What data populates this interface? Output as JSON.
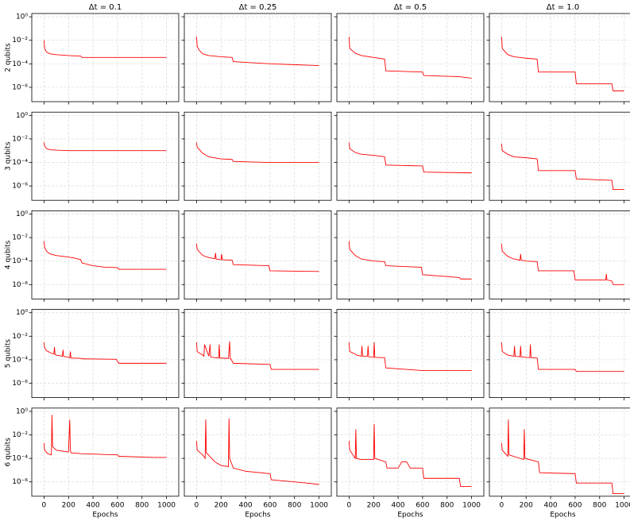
{
  "chart_data": [
    {
      "type": "line",
      "title": "Δt = 0.1",
      "ylabel": "2 qubits",
      "log_y": true,
      "grid": true,
      "color": "#ff0000",
      "xlim": [
        -100,
        1100
      ],
      "ylim": [
        6e-08,
        1.9
      ],
      "xticks": [
        0,
        200,
        400,
        600,
        800,
        1000
      ],
      "yticks": [
        {
          "value": 1,
          "label": "10⁰"
        },
        {
          "value": 0.01,
          "label": "10⁻²"
        },
        {
          "value": 0.0001,
          "label": "10⁻⁴"
        },
        {
          "value": 1e-06,
          "label": "10⁻⁶"
        }
      ],
      "x": [
        0,
        5,
        20,
        50,
        100,
        200,
        300,
        310,
        600,
        1000
      ],
      "values": [
        0.01,
        0.002,
        0.001,
        0.0007,
        0.0006,
        0.0005,
        0.00045,
        0.00035,
        0.00035,
        0.00035
      ]
    },
    {
      "type": "line",
      "title": "Δt = 0.25",
      "log_y": true,
      "grid": true,
      "color": "#ff0000",
      "xlim": [
        -100,
        1100
      ],
      "ylim": [
        6e-08,
        1.9
      ],
      "xticks": [
        0,
        200,
        400,
        600,
        800,
        1000
      ],
      "yticks": [
        1,
        0.01,
        0.0001,
        1e-06
      ],
      "x": [
        0,
        5,
        20,
        50,
        100,
        200,
        290,
        300,
        310,
        600,
        1000
      ],
      "values": [
        0.02,
        0.003,
        0.0015,
        0.0007,
        0.0005,
        0.0004,
        0.00035,
        0.00015,
        0.00015,
        0.0001,
        7e-05
      ]
    },
    {
      "type": "line",
      "title": "Δt = 0.5",
      "log_y": true,
      "grid": true,
      "color": "#ff0000",
      "xlim": [
        -100,
        1100
      ],
      "ylim": [
        6e-08,
        1.9
      ],
      "xticks": [
        0,
        200,
        400,
        600,
        800,
        1000
      ],
      "yticks": [
        1,
        0.01,
        0.0001,
        1e-06
      ],
      "x": [
        0,
        5,
        50,
        100,
        200,
        290,
        300,
        600,
        610,
        900,
        1000
      ],
      "values": [
        0.02,
        0.002,
        0.0008,
        0.0005,
        0.00035,
        0.00025,
        2.5e-05,
        2e-05,
        1e-05,
        8e-06,
        6e-06
      ]
    },
    {
      "type": "line",
      "title": "Δt = 1.0",
      "log_y": true,
      "grid": true,
      "color": "#ff0000",
      "xlim": [
        -100,
        1100
      ],
      "ylim": [
        6e-08,
        1.9
      ],
      "xticks": [
        0,
        200,
        400,
        600,
        800,
        1000
      ],
      "yticks": [
        1,
        0.01,
        0.0001,
        1e-06
      ],
      "x": [
        0,
        5,
        50,
        100,
        200,
        290,
        300,
        600,
        610,
        900,
        910,
        1000
      ],
      "values": [
        0.02,
        0.002,
        0.0006,
        0.0004,
        0.0003,
        0.00025,
        2e-05,
        2e-05,
        2e-06,
        2e-06,
        5e-07,
        5e-07
      ]
    },
    {
      "type": "line",
      "ylabel": "3 qubits",
      "log_y": true,
      "grid": true,
      "color": "#ff0000",
      "xlim": [
        -100,
        1100
      ],
      "ylim": [
        6e-08,
        1.9
      ],
      "xticks": [
        0,
        200,
        400,
        600,
        800,
        1000
      ],
      "yticks": [
        {
          "value": 1,
          "label": "10⁰"
        },
        {
          "value": 0.01,
          "label": "10⁻²"
        },
        {
          "value": 0.0001,
          "label": "10⁻⁴"
        },
        {
          "value": 1e-06,
          "label": "10⁻⁶"
        }
      ],
      "x": [
        0,
        5,
        20,
        50,
        100,
        200,
        300,
        600,
        1000
      ],
      "values": [
        0.005,
        0.0025,
        0.0015,
        0.0012,
        0.0011,
        0.001,
        0.001,
        0.001,
        0.001
      ]
    },
    {
      "type": "line",
      "log_y": true,
      "grid": true,
      "color": "#ff0000",
      "xlim": [
        -100,
        1100
      ],
      "ylim": [
        6e-08,
        1.9
      ],
      "xticks": [
        0,
        200,
        400,
        600,
        800,
        1000
      ],
      "yticks": [
        1,
        0.01,
        0.0001,
        1e-06
      ],
      "x": [
        0,
        5,
        50,
        100,
        200,
        290,
        300,
        600,
        1000
      ],
      "values": [
        0.005,
        0.002,
        0.0006,
        0.0003,
        0.0002,
        0.00018,
        0.00012,
        0.0001,
        0.0001
      ]
    },
    {
      "type": "line",
      "log_y": true,
      "grid": true,
      "color": "#ff0000",
      "xlim": [
        -100,
        1100
      ],
      "ylim": [
        6e-08,
        1.9
      ],
      "xticks": [
        0,
        200,
        400,
        600,
        800,
        1000
      ],
      "yticks": [
        1,
        0.01,
        0.0001,
        1e-06
      ],
      "x": [
        0,
        5,
        50,
        100,
        200,
        290,
        300,
        600,
        610,
        1000
      ],
      "values": [
        0.005,
        0.0015,
        0.0007,
        0.0005,
        0.0004,
        0.0003,
        6e-05,
        5e-05,
        1.5e-05,
        1.3e-05
      ]
    },
    {
      "type": "line",
      "log_y": true,
      "grid": true,
      "color": "#ff0000",
      "xlim": [
        -100,
        1100
      ],
      "ylim": [
        6e-08,
        1.9
      ],
      "xticks": [
        0,
        200,
        400,
        600,
        800,
        1000
      ],
      "yticks": [
        1,
        0.01,
        0.0001,
        1e-06
      ],
      "x": [
        0,
        5,
        50,
        100,
        200,
        290,
        300,
        600,
        610,
        900,
        910,
        1000
      ],
      "values": [
        0.004,
        0.001,
        0.0005,
        0.0003,
        0.00025,
        0.0002,
        2e-05,
        2e-05,
        4e-06,
        3e-06,
        5e-07,
        5e-07
      ]
    },
    {
      "type": "line",
      "ylabel": "4 qubits",
      "log_y": true,
      "grid": true,
      "color": "#ff0000",
      "xlim": [
        -100,
        1100
      ],
      "ylim": [
        6e-08,
        1.9
      ],
      "xticks": [
        0,
        200,
        400,
        600,
        800,
        1000
      ],
      "yticks": [
        {
          "value": 1,
          "label": "10⁰"
        },
        {
          "value": 0.01,
          "label": "10⁻²"
        },
        {
          "value": 0.0001,
          "label": "10⁻⁴"
        },
        {
          "value": 1e-06,
          "label": "10⁻⁶"
        }
      ],
      "x": [
        0,
        5,
        20,
        50,
        100,
        200,
        250,
        300,
        310,
        400,
        500,
        600,
        610,
        1000
      ],
      "values": [
        0.005,
        0.0015,
        0.0007,
        0.0004,
        0.0003,
        0.00022,
        0.00018,
        0.00013,
        7e-05,
        4e-05,
        3e-05,
        2.8e-05,
        2e-05,
        2e-05
      ]
    },
    {
      "type": "line",
      "log_y": true,
      "grid": true,
      "color": "#ff0000",
      "xlim": [
        -100,
        1100
      ],
      "ylim": [
        6e-08,
        1.9
      ],
      "xticks": [
        0,
        200,
        400,
        600,
        800,
        1000
      ],
      "yticks": [
        1,
        0.01,
        0.0001,
        1e-06
      ],
      "x": [
        0,
        5,
        50,
        100,
        150,
        155,
        160,
        200,
        205,
        210,
        290,
        300,
        590,
        600,
        1000
      ],
      "values": [
        0.003,
        0.001,
        0.0003,
        0.0002,
        0.00016,
        0.0005,
        0.00015,
        0.00013,
        0.0004,
        0.00013,
        0.00012,
        5e-05,
        4e-05,
        1.5e-05,
        1.3e-05
      ]
    },
    {
      "type": "line",
      "log_y": true,
      "grid": true,
      "color": "#ff0000",
      "xlim": [
        -100,
        1100
      ],
      "ylim": [
        6e-08,
        1.9
      ],
      "xticks": [
        0,
        200,
        400,
        600,
        800,
        1000
      ],
      "yticks": [
        1,
        0.01,
        0.0001,
        1e-06
      ],
      "x": [
        0,
        5,
        50,
        100,
        200,
        290,
        300,
        590,
        600,
        900,
        910,
        1000
      ],
      "values": [
        0.005,
        0.001,
        0.0003,
        0.00015,
        0.0001,
        9e-05,
        4e-05,
        3e-05,
        7e-06,
        4e-06,
        3e-06,
        3e-06
      ]
    },
    {
      "type": "line",
      "log_y": true,
      "grid": true,
      "color": "#ff0000",
      "xlim": [
        -100,
        1100
      ],
      "ylim": [
        6e-08,
        1.9
      ],
      "xticks": [
        0,
        200,
        400,
        600,
        800,
        1000
      ],
      "yticks": [
        1,
        0.01,
        0.0001,
        1e-06
      ],
      "x": [
        0,
        5,
        50,
        100,
        150,
        155,
        160,
        200,
        290,
        300,
        590,
        600,
        850,
        855,
        860,
        900,
        910,
        1000
      ],
      "values": [
        0.003,
        0.0007,
        0.00025,
        0.00015,
        0.00012,
        0.0004,
        0.00012,
        0.0001,
        9e-05,
        1.5e-05,
        1.5e-05,
        2.5e-06,
        2.5e-06,
        8e-06,
        2.5e-06,
        2e-06,
        1e-06,
        1e-06
      ]
    },
    {
      "type": "line",
      "ylabel": "5 qubits",
      "log_y": true,
      "grid": true,
      "color": "#ff0000",
      "xlim": [
        -100,
        1100
      ],
      "ylim": [
        6e-08,
        1.9
      ],
      "xticks": [
        0,
        200,
        400,
        600,
        800,
        1000
      ],
      "yticks": [
        {
          "value": 1,
          "label": "10⁰"
        },
        {
          "value": 0.01,
          "label": "10⁻²"
        },
        {
          "value": 0.0001,
          "label": "10⁻⁴"
        },
        {
          "value": 1e-06,
          "label": "10⁻⁶"
        }
      ],
      "x": [
        0,
        5,
        20,
        50,
        80,
        85,
        90,
        100,
        150,
        155,
        160,
        200,
        210,
        215,
        220,
        300,
        310,
        590,
        610,
        1000
      ],
      "values": [
        0.003,
        0.001,
        0.0006,
        0.0004,
        0.0003,
        0.0012,
        0.00028,
        0.00025,
        0.0002,
        0.0007,
        0.00019,
        0.00016,
        0.00015,
        0.0005,
        0.00014,
        0.00013,
        0.00012,
        0.00011,
        5e-05,
        5e-05
      ]
    },
    {
      "type": "line",
      "log_y": true,
      "grid": true,
      "color": "#ff0000",
      "xlim": [
        -100,
        1100
      ],
      "ylim": [
        6e-08,
        1.9
      ],
      "xticks": [
        0,
        200,
        400,
        600,
        800,
        1000
      ],
      "yticks": [
        1,
        0.01,
        0.0001,
        1e-06
      ],
      "x": [
        0,
        5,
        50,
        60,
        65,
        100,
        110,
        115,
        150,
        180,
        185,
        190,
        260,
        270,
        275,
        280,
        300,
        600,
        610,
        1000
      ],
      "values": [
        0.003,
        0.0005,
        0.00025,
        0.0002,
        0.002,
        0.0002,
        0.002,
        0.00017,
        0.00015,
        0.00014,
        0.002,
        0.00014,
        0.00013,
        0.0035,
        0.00012,
        0.00012,
        5e-05,
        4e-05,
        1.5e-05,
        1.5e-05
      ]
    },
    {
      "type": "line",
      "log_y": true,
      "grid": true,
      "color": "#ff0000",
      "xlim": [
        -100,
        1100
      ],
      "ylim": [
        6e-08,
        1.9
      ],
      "xticks": [
        0,
        200,
        400,
        600,
        800,
        1000
      ],
      "yticks": [
        1,
        0.01,
        0.0001,
        1e-06
      ],
      "x": [
        0,
        5,
        50,
        60,
        100,
        105,
        110,
        150,
        155,
        160,
        200,
        205,
        210,
        290,
        300,
        600,
        1000
      ],
      "values": [
        0.003,
        0.0005,
        0.0003,
        0.00025,
        0.0002,
        0.0015,
        0.0002,
        0.0002,
        0.0015,
        0.00018,
        0.00016,
        0.003,
        0.00016,
        0.00015,
        2e-05,
        1.2e-05,
        1.2e-05
      ]
    },
    {
      "type": "line",
      "log_y": true,
      "grid": true,
      "color": "#ff0000",
      "xlim": [
        -100,
        1100
      ],
      "ylim": [
        6e-08,
        1.9
      ],
      "xticks": [
        0,
        200,
        400,
        600,
        800,
        1000
      ],
      "yticks": [
        1,
        0.01,
        0.0001,
        1e-06
      ],
      "x": [
        0,
        5,
        50,
        100,
        105,
        110,
        150,
        155,
        160,
        230,
        235,
        240,
        290,
        300,
        600,
        610,
        1000
      ],
      "values": [
        0.003,
        0.0005,
        0.00025,
        0.0002,
        0.0015,
        0.0002,
        0.00018,
        0.0015,
        0.00017,
        0.00015,
        0.002,
        0.00015,
        0.00014,
        1.5e-05,
        1.5e-05,
        1e-05,
        1e-05
      ]
    },
    {
      "type": "line",
      "ylabel": "6 qubits",
      "xlabel": "Epochs",
      "log_y": true,
      "grid": true,
      "color": "#ff0000",
      "xlim": [
        -100,
        1100
      ],
      "ylim": [
        6e-08,
        1.9
      ],
      "xticks": [
        0,
        200,
        400,
        600,
        800,
        1000
      ],
      "yticks": [
        {
          "value": 1,
          "label": "10⁰"
        },
        {
          "value": 0.01,
          "label": "10⁻²"
        },
        {
          "value": 0.0001,
          "label": "10⁻⁴"
        },
        {
          "value": 1e-06,
          "label": "10⁻⁶"
        }
      ],
      "x": [
        0,
        5,
        30,
        60,
        65,
        70,
        100,
        200,
        210,
        215,
        220,
        300,
        600,
        610,
        900,
        1000
      ],
      "values": [
        0.002,
        0.0005,
        0.00025,
        0.0002,
        0.5,
        0.001,
        0.0005,
        0.00035,
        0.2,
        0.0005,
        0.0003,
        0.00025,
        0.0002,
        0.00015,
        0.00012,
        0.00012
      ]
    },
    {
      "type": "line",
      "xlabel": "Epochs",
      "log_y": true,
      "grid": true,
      "color": "#ff0000",
      "xlim": [
        -100,
        1100
      ],
      "ylim": [
        6e-08,
        1.9
      ],
      "xticks": [
        0,
        200,
        400,
        600,
        800,
        1000
      ],
      "yticks": [
        1,
        0.01,
        0.0001,
        1e-06
      ],
      "x": [
        0,
        5,
        50,
        70,
        75,
        80,
        150,
        200,
        260,
        265,
        270,
        300,
        400,
        600,
        610,
        900,
        1000
      ],
      "values": [
        0.003,
        0.0005,
        0.0002,
        0.0001,
        0.2,
        0.0003,
        5e-05,
        2.5e-05,
        2e-05,
        0.25,
        0.0001,
        1.5e-05,
        8e-06,
        5e-06,
        1.5e-06,
        8e-07,
        6e-07
      ]
    },
    {
      "type": "line",
      "xlabel": "Epochs",
      "log_y": true,
      "grid": true,
      "color": "#ff0000",
      "xlim": [
        -100,
        1100
      ],
      "ylim": [
        6e-08,
        1.9
      ],
      "xticks": [
        0,
        200,
        400,
        600,
        800,
        1000
      ],
      "yticks": [
        1,
        0.01,
        0.0001,
        1e-06
      ],
      "x": [
        0,
        5,
        50,
        55,
        60,
        100,
        200,
        205,
        210,
        300,
        310,
        400,
        430,
        470,
        500,
        600,
        610,
        900,
        910,
        1000
      ],
      "values": [
        0.003,
        0.0005,
        0.0001,
        0.03,
        0.0001,
        8e-05,
        8e-05,
        0.08,
        0.0001,
        5e-05,
        1.5e-05,
        1.5e-05,
        5e-05,
        5e-05,
        1.5e-05,
        1.5e-05,
        2e-06,
        2e-06,
        4e-07,
        4e-07
      ]
    },
    {
      "type": "line",
      "xlabel": "Epochs",
      "log_y": true,
      "grid": true,
      "color": "#ff0000",
      "xlim": [
        -100,
        1100
      ],
      "ylim": [
        6e-08,
        1.9
      ],
      "xticks": [
        0,
        200,
        400,
        600,
        800,
        1000
      ],
      "yticks": [
        1,
        0.01,
        0.0001,
        1e-06
      ],
      "x": [
        0,
        5,
        40,
        50,
        55,
        60,
        150,
        180,
        185,
        190,
        300,
        310,
        600,
        610,
        900,
        910,
        1000
      ],
      "values": [
        0.002,
        0.0005,
        0.0002,
        0.00015,
        0.2,
        0.0002,
        0.0001,
        8e-05,
        0.03,
        0.0001,
        5e-05,
        6e-06,
        5e-06,
        8e-07,
        8e-07,
        1e-07,
        1e-07
      ]
    }
  ]
}
